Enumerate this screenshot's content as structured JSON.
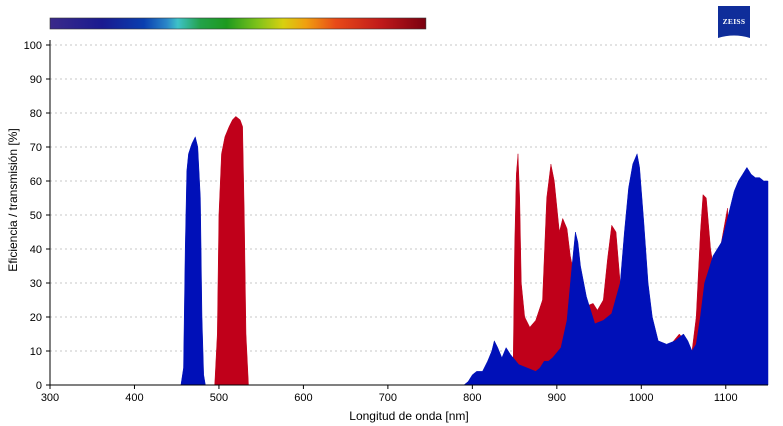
{
  "brand": {
    "name": "ZEISS",
    "color": "#0f2d9a"
  },
  "chart_data": {
    "type": "area",
    "xlabel": "Longitud de onda [nm]",
    "ylabel": "Eficiencia / transmisión [%]",
    "xlim": [
      300,
      1150
    ],
    "ylim": [
      0,
      100
    ],
    "xticks": [
      300,
      400,
      500,
      600,
      700,
      800,
      900,
      1000,
      1100
    ],
    "yticks": [
      0,
      10,
      20,
      30,
      40,
      50,
      60,
      70,
      80,
      90,
      100
    ],
    "grid": "horizontal dotted",
    "spectrum_bar_range_nm": [
      300,
      745
    ],
    "series": [
      {
        "color": "#c0001a",
        "points": [
          [
            495,
            0
          ],
          [
            498,
            15
          ],
          [
            500,
            50
          ],
          [
            503,
            68
          ],
          [
            507,
            73
          ],
          [
            512,
            76
          ],
          [
            516,
            78
          ],
          [
            520,
            79
          ],
          [
            525,
            78
          ],
          [
            528,
            76
          ],
          [
            530,
            50
          ],
          [
            532,
            15
          ],
          [
            535,
            0
          ],
          [
            848,
            0
          ],
          [
            850,
            40
          ],
          [
            852,
            62
          ],
          [
            854,
            68
          ],
          [
            856,
            55
          ],
          [
            858,
            30
          ],
          [
            862,
            20
          ],
          [
            868,
            17
          ],
          [
            875,
            19
          ],
          [
            883,
            25
          ],
          [
            888,
            55
          ],
          [
            893,
            65
          ],
          [
            897,
            60
          ],
          [
            903,
            45
          ],
          [
            907,
            49
          ],
          [
            912,
            46
          ],
          [
            916,
            38
          ],
          [
            925,
            27
          ],
          [
            933,
            23
          ],
          [
            943,
            24
          ],
          [
            948,
            22
          ],
          [
            955,
            25
          ],
          [
            960,
            37
          ],
          [
            965,
            47
          ],
          [
            970,
            45
          ],
          [
            975,
            30
          ],
          [
            985,
            26
          ],
          [
            1005,
            10
          ],
          [
            1015,
            9
          ],
          [
            1035,
            12
          ],
          [
            1045,
            15
          ],
          [
            1055,
            12
          ],
          [
            1060,
            10
          ],
          [
            1065,
            20
          ],
          [
            1070,
            45
          ],
          [
            1073,
            56
          ],
          [
            1077,
            55
          ],
          [
            1082,
            40
          ],
          [
            1087,
            32
          ],
          [
            1092,
            38
          ],
          [
            1097,
            45
          ],
          [
            1102,
            52
          ],
          [
            1105,
            30
          ],
          [
            1105,
            0
          ]
        ]
      },
      {
        "color": "#0010b8",
        "points": [
          [
            455,
            0
          ],
          [
            458,
            5
          ],
          [
            460,
            40
          ],
          [
            462,
            63
          ],
          [
            464,
            68
          ],
          [
            468,
            71
          ],
          [
            472,
            73
          ],
          [
            475,
            70
          ],
          [
            478,
            55
          ],
          [
            480,
            20
          ],
          [
            482,
            3
          ],
          [
            484,
            0
          ],
          [
            790,
            0
          ],
          [
            795,
            1
          ],
          [
            800,
            3
          ],
          [
            805,
            4
          ],
          [
            812,
            4
          ],
          [
            818,
            7
          ],
          [
            823,
            10
          ],
          [
            826,
            13
          ],
          [
            830,
            11
          ],
          [
            835,
            8
          ],
          [
            840,
            11
          ],
          [
            845,
            9
          ],
          [
            855,
            6
          ],
          [
            865,
            5
          ],
          [
            875,
            4
          ],
          [
            880,
            5
          ],
          [
            885,
            7
          ],
          [
            890,
            7
          ],
          [
            895,
            8
          ],
          [
            905,
            11
          ],
          [
            912,
            19
          ],
          [
            918,
            35
          ],
          [
            922,
            45
          ],
          [
            925,
            42
          ],
          [
            928,
            35
          ],
          [
            935,
            26
          ],
          [
            940,
            22
          ],
          [
            945,
            18
          ],
          [
            955,
            19
          ],
          [
            965,
            21
          ],
          [
            975,
            30
          ],
          [
            980,
            45
          ],
          [
            985,
            58
          ],
          [
            990,
            65
          ],
          [
            995,
            68
          ],
          [
            998,
            64
          ],
          [
            1003,
            48
          ],
          [
            1008,
            30
          ],
          [
            1013,
            20
          ],
          [
            1020,
            13
          ],
          [
            1030,
            12
          ],
          [
            1040,
            13
          ],
          [
            1050,
            15
          ],
          [
            1055,
            13
          ],
          [
            1060,
            10
          ],
          [
            1065,
            12
          ],
          [
            1070,
            20
          ],
          [
            1075,
            30
          ],
          [
            1080,
            34
          ],
          [
            1085,
            38
          ],
          [
            1090,
            40
          ],
          [
            1095,
            42
          ],
          [
            1100,
            47
          ],
          [
            1105,
            52
          ],
          [
            1110,
            57
          ],
          [
            1115,
            60
          ],
          [
            1120,
            62
          ],
          [
            1125,
            64
          ],
          [
            1130,
            62
          ],
          [
            1135,
            61
          ],
          [
            1140,
            61
          ],
          [
            1145,
            60
          ],
          [
            1150,
            60
          ],
          [
            1150,
            0
          ]
        ]
      }
    ]
  }
}
